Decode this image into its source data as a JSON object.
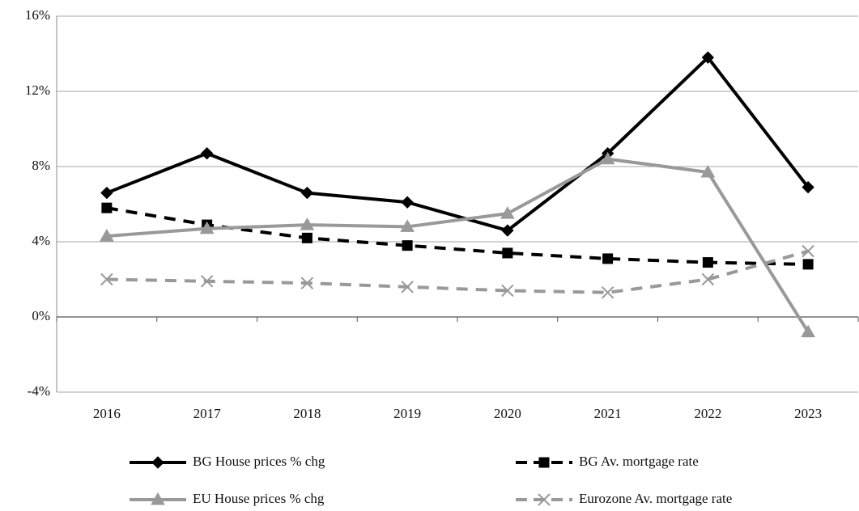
{
  "chart_data": {
    "type": "line",
    "categories": [
      "2016",
      "2017",
      "2018",
      "2019",
      "2020",
      "2021",
      "2022",
      "2023"
    ],
    "series": [
      {
        "name": "BG House prices % chg",
        "color": "#000000",
        "dash": false,
        "marker": "diamond",
        "values": [
          6.6,
          8.7,
          6.6,
          6.1,
          4.6,
          8.7,
          13.8,
          6.9
        ]
      },
      {
        "name": "BG Av. mortgage rate",
        "color": "#000000",
        "dash": true,
        "marker": "square",
        "values": [
          5.8,
          4.9,
          4.2,
          3.8,
          3.4,
          3.1,
          2.9,
          2.8
        ]
      },
      {
        "name": "EU House prices % chg",
        "color": "#999999",
        "dash": false,
        "marker": "triangle",
        "values": [
          4.3,
          4.7,
          4.9,
          4.8,
          5.5,
          8.4,
          7.7,
          -0.8
        ]
      },
      {
        "name": "Eurozone Av. mortgage rate",
        "color": "#999999",
        "dash": true,
        "marker": "x",
        "values": [
          2.0,
          1.9,
          1.8,
          1.6,
          1.4,
          1.3,
          2.0,
          3.5
        ]
      }
    ],
    "ylim": [
      -4,
      16
    ],
    "yticks": [
      {
        "value": -4,
        "label": "-4%"
      },
      {
        "value": 0,
        "label": "0%"
      },
      {
        "value": 4,
        "label": "4%"
      },
      {
        "value": 8,
        "label": "8%"
      },
      {
        "value": 12,
        "label": "12%"
      },
      {
        "value": 16,
        "label": "16%"
      }
    ],
    "grid": true,
    "legend": "bottom"
  }
}
